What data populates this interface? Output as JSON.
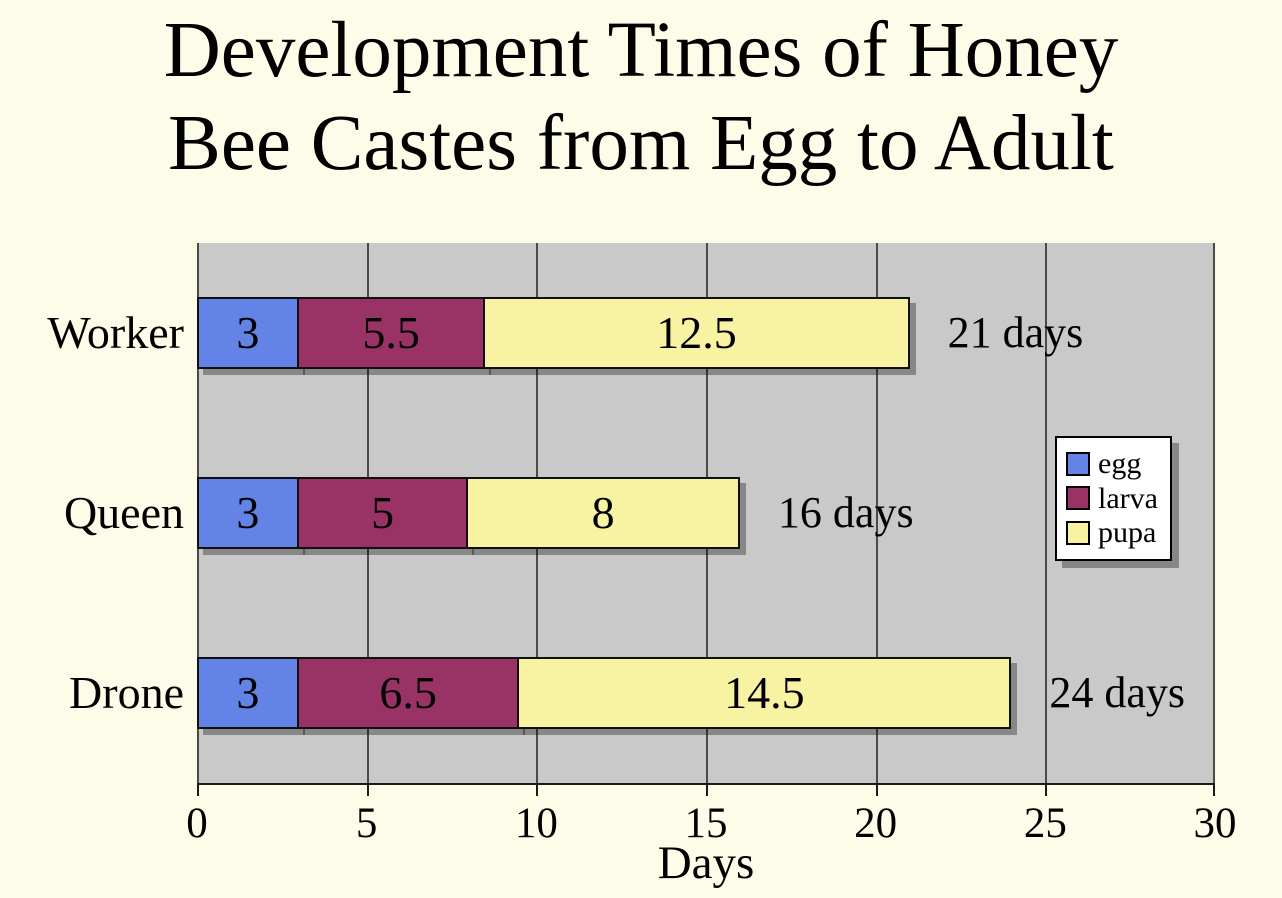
{
  "title": {
    "line1": "Development Times of Honey",
    "line2": "Bee Castes from Egg to Adult"
  },
  "chart_data": {
    "type": "bar",
    "stacked": true,
    "orientation": "horizontal",
    "title": "Development Times of Honey Bee Castes from Egg to Adult",
    "xlabel": "Days",
    "xlim": [
      0,
      30
    ],
    "xticks": [
      0,
      5,
      10,
      15,
      20,
      25,
      30
    ],
    "xtick_labels": [
      "0",
      "5",
      "10",
      "15",
      "20",
      "25",
      "30"
    ],
    "grid": true,
    "legend_position": "middle-right",
    "categories": [
      "Worker",
      "Queen",
      "Drone"
    ],
    "series": [
      {
        "name": "egg",
        "color": "#6384E6",
        "values": [
          3,
          3,
          3
        ],
        "labels": [
          "3",
          "3",
          "3"
        ]
      },
      {
        "name": "larva",
        "color": "#993366",
        "values": [
          5.5,
          5,
          6.5
        ],
        "labels": [
          "5.5",
          "5",
          "6.5"
        ]
      },
      {
        "name": "pupa",
        "color": "#F8F2A3",
        "values": [
          12.5,
          8,
          14.5
        ],
        "labels": [
          "12.5",
          "8",
          "14.5"
        ]
      }
    ],
    "totals": [
      "21 days",
      "16 days",
      "24 days"
    ]
  },
  "colors": {
    "page_bg": "#FDFCE8",
    "plot_bg": "#C9C9C9",
    "grid_line": "#4B4B46",
    "axis_line": "#1A1A1A",
    "bar_border": "#101010",
    "legend_bg": "#FFFFFF",
    "text": "#000000"
  }
}
